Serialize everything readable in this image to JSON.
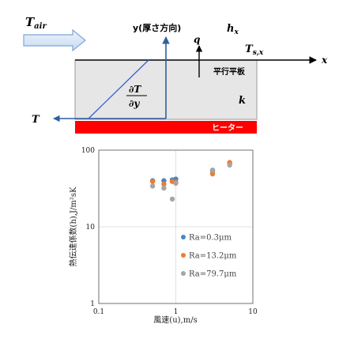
{
  "diagram": {
    "t_air": "T",
    "t_air_sub": "air",
    "y_axis": "y(厚さ方向)",
    "h_label": "h",
    "h_sub": "x",
    "q_label": "q",
    "ts_label": "T",
    "ts_sub": "s,x",
    "x_label": "x",
    "plate_label": "平行平板",
    "grad_num": "∂T",
    "grad_den": "∂y",
    "k_label": "k",
    "t_label": "T",
    "heater_label": "ヒーター",
    "colors": {
      "heater": "#ff0000",
      "plate": "#e6e6e6",
      "arrow": "#2f6fbf",
      "gradient": "#3a5fd0"
    }
  },
  "chart_data": {
    "type": "scatter",
    "xscale": "log",
    "yscale": "log",
    "xlim": [
      0.1,
      10
    ],
    "ylim": [
      1,
      100
    ],
    "xticks": [
      {
        "v": 0.1,
        "label": "0.1"
      },
      {
        "v": 1,
        "label": "1"
      },
      {
        "v": 10,
        "label": "10"
      }
    ],
    "yticks": [
      {
        "v": 1,
        "label": "1"
      },
      {
        "v": 10,
        "label": "10"
      },
      {
        "v": 100,
        "label": "100"
      }
    ],
    "xlabel": "風速(u),m/s",
    "ylabel": "熱伝達係数(h),J/m²sK",
    "grid": true,
    "legend_position": "lower-right",
    "series": [
      {
        "name": "Ra=0.3μm",
        "color": "#4a86c8",
        "x": [
          0.5,
          0.7,
          0.9,
          1.0,
          3.0,
          5.0
        ],
        "y": [
          40,
          40,
          41,
          42,
          53,
          68
        ]
      },
      {
        "name": "Ra=13.2μm",
        "color": "#ed7d31",
        "x": [
          0.5,
          0.7,
          0.9,
          1.0,
          3.0,
          5.0
        ],
        "y": [
          39,
          36,
          39,
          38,
          49,
          69
        ]
      },
      {
        "name": "Ra=79.7μm",
        "color": "#a5a5a5",
        "x": [
          0.5,
          0.7,
          0.9,
          1.0,
          3.0,
          5.0
        ],
        "y": [
          34,
          32,
          23,
          37,
          55,
          64
        ]
      }
    ]
  }
}
